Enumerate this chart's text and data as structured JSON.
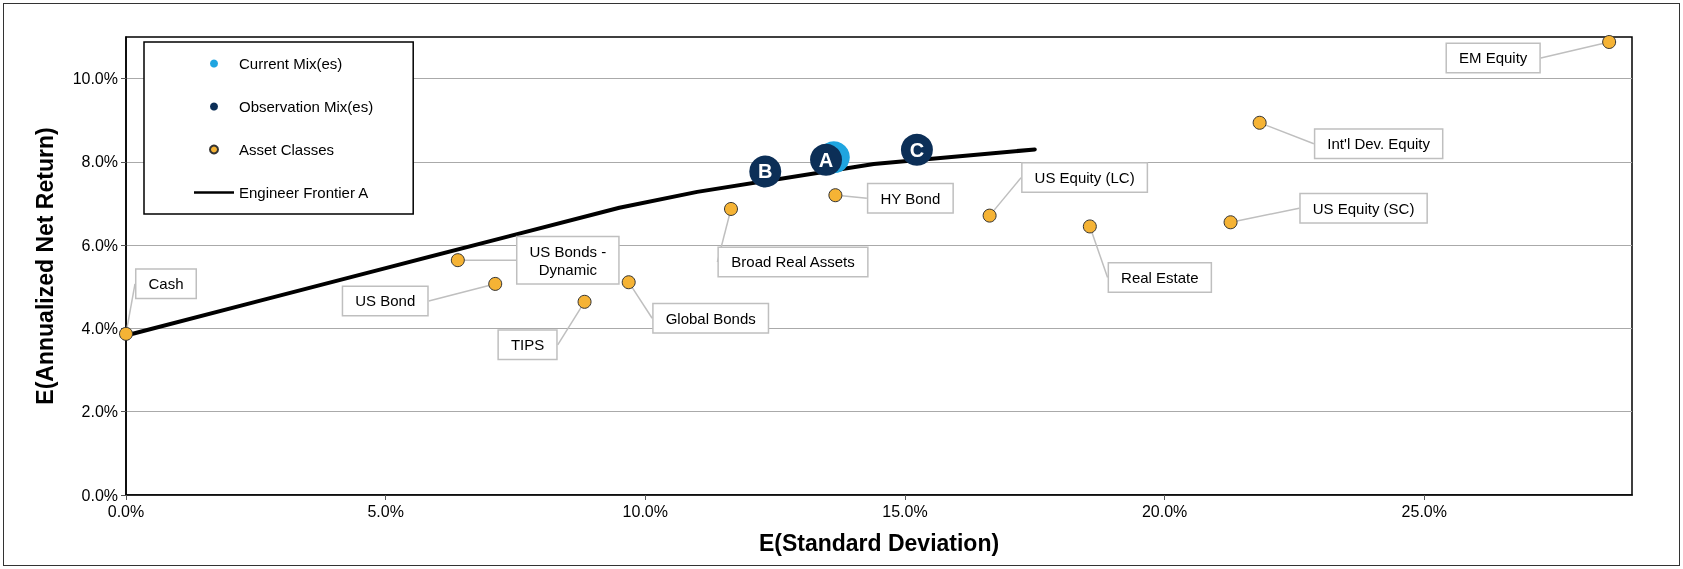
{
  "chart_data": {
    "type": "scatter",
    "xlabel": "E(Standard Deviation)",
    "ylabel": "E(Annualized Net Return)",
    "xlim": [
      0,
      29
    ],
    "xticks": [
      {
        "value": 0,
        "label": "0.0%"
      },
      {
        "value": 5,
        "label": "5.0%"
      },
      {
        "value": 10,
        "label": "10.0%"
      },
      {
        "value": 15,
        "label": "15.0%"
      },
      {
        "value": 20,
        "label": "20.0%"
      },
      {
        "value": 25,
        "label": "25.0%"
      }
    ],
    "ylim": [
      0,
      11
    ],
    "yticks": [
      {
        "value": 0,
        "label": "0.0%"
      },
      {
        "value": 2,
        "label": "2.0%"
      },
      {
        "value": 4,
        "label": "4.0%"
      },
      {
        "value": 6,
        "label": "6.0%"
      },
      {
        "value": 8,
        "label": "8.0%"
      },
      {
        "value": 10,
        "label": "10.0%"
      }
    ],
    "grid": "y",
    "legend": "top left",
    "marker": "circle",
    "series": [
      {
        "name": "Current Mix(es)",
        "color": "#1fa5e0",
        "x": [
          13.63
        ],
        "values": [
          8.11
        ]
      },
      {
        "name": "Observation Mix(es)",
        "color": "#0c2f57",
        "x": [
          12.31,
          13.48,
          15.23
        ],
        "values": [
          7.77,
          8.05,
          8.29
        ],
        "value_labels": [
          "B",
          "A",
          "C"
        ]
      },
      {
        "name": "Asset Classes",
        "color": "#f5b335",
        "x": [
          0,
          6.39,
          7.11,
          8.83,
          9.68,
          11.65,
          13.66,
          16.63,
          18.56,
          21.27,
          21.83,
          28.56
        ],
        "values": [
          3.87,
          5.64,
          5.07,
          4.64,
          5.11,
          6.87,
          7.2,
          6.71,
          6.45,
          6.55,
          8.94,
          10.88
        ],
        "value_labels": [
          "Cash",
          "US Bonds -\nDynamic",
          "US Bond",
          "TIPS",
          "Global Bonds",
          "Broad Real Assets",
          "HY Bond",
          "US Equity (LC)",
          "Real Estate",
          "US Equity (SC)",
          "Int'l Dev. Equity",
          "EM Equity"
        ]
      },
      {
        "name": "Engineer Frontier A",
        "type": "line",
        "color": "#000000",
        "marker": "none",
        "x": [
          0,
          5,
          9.5,
          11,
          14.4,
          17.5
        ],
        "values": [
          3.83,
          5.45,
          6.9,
          7.28,
          7.95,
          8.3
        ]
      }
    ]
  }
}
